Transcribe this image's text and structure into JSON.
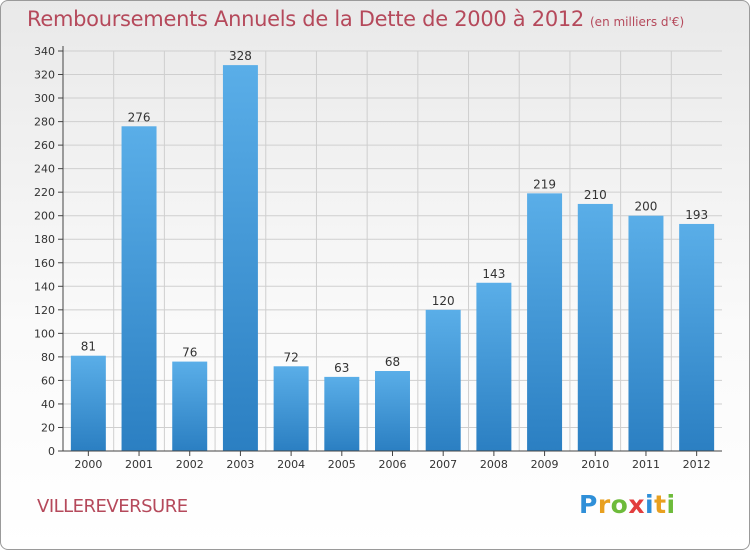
{
  "header": {
    "title": "Remboursements Annuels de la Dette de 2000 à 2012",
    "subtitle": "(en milliers d'€)"
  },
  "footer": {
    "commune": "VILLEREVERSURE",
    "logo_text": "Proxiti",
    "logo_colors": [
      "#2f8fd8",
      "#e8a020",
      "#6dbb3a",
      "#e23d3d",
      "#2f8fd8",
      "#e8a020",
      "#6dbb3a"
    ]
  },
  "colors": {
    "bar_light": "#5aaee8",
    "bar_dark": "#2b7fc2",
    "grid": "#cfcfcf",
    "axis": "#444444",
    "accent": "#b5495b"
  },
  "chart_data": {
    "type": "bar",
    "categories": [
      "2000",
      "2001",
      "2002",
      "2003",
      "2004",
      "2005",
      "2006",
      "2007",
      "2008",
      "2009",
      "2010",
      "2011",
      "2012"
    ],
    "values": [
      81,
      276,
      76,
      328,
      72,
      63,
      68,
      120,
      143,
      219,
      210,
      200,
      193
    ],
    "ylim": [
      0,
      340
    ],
    "ytick_step": 20,
    "grid": true,
    "data_labels": true
  }
}
